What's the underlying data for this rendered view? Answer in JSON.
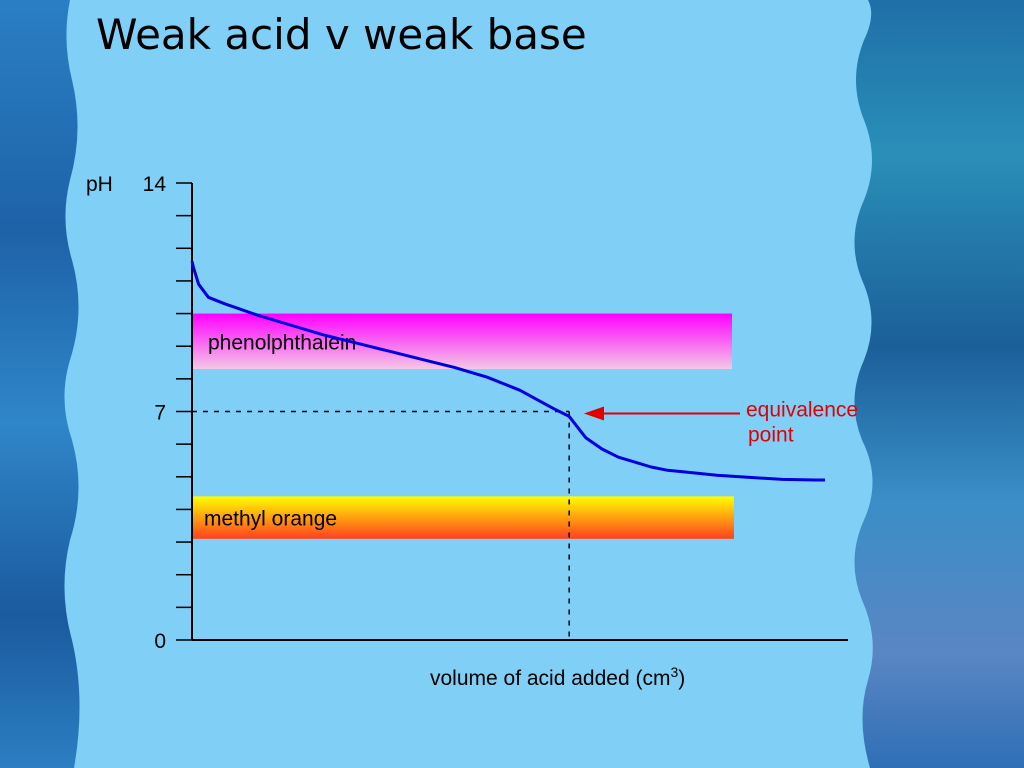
{
  "slide": {
    "title": "Weak acid v weak base",
    "panel_color": "#80cff7"
  },
  "chart_data": {
    "type": "line",
    "title": "",
    "ylabel": "pH",
    "xlabel_main": "volume of acid added (cm",
    "xlabel_sup": "3",
    "xlabel_close": ")",
    "ylim": [
      0,
      14
    ],
    "xlim": [
      0,
      20
    ],
    "y_ticks_labeled": [
      {
        "value": 14,
        "label": "14"
      },
      {
        "value": 7,
        "label": "7"
      },
      {
        "value": 0,
        "label": "0"
      }
    ],
    "y_minor_tick_step": 1,
    "series": [
      {
        "color": "#0000dd",
        "x": [
          0,
          0.05,
          0.2,
          0.5,
          1,
          2,
          3,
          4,
          5,
          6,
          7,
          8,
          9,
          10,
          11,
          11.5,
          12,
          12.5,
          13,
          13.5,
          14,
          14.5,
          15,
          16,
          17,
          18,
          19,
          19.3
        ],
        "y": [
          11.6,
          11.4,
          10.9,
          10.5,
          10.3,
          9.95,
          9.65,
          9.35,
          9.1,
          8.85,
          8.6,
          8.35,
          8.05,
          7.65,
          7.1,
          6.85,
          6.2,
          5.85,
          5.6,
          5.45,
          5.3,
          5.2,
          5.15,
          5.05,
          4.98,
          4.92,
          4.9,
          4.9
        ]
      }
    ],
    "equivalence": {
      "x": 11.5,
      "y": 7
    },
    "indicator_bands": [
      {
        "name": "phenolphthalein",
        "ymin": 8.3,
        "ymax": 10.0,
        "color_top": "#ff00ff",
        "color_bottom": "#f3c8e6"
      },
      {
        "name": "methyl orange",
        "ymin": 3.1,
        "ymax": 4.4,
        "color_top": "#ffff00",
        "color_bottom": "#ff4020"
      }
    ],
    "annotations": [
      {
        "text_line1": "equivalence",
        "text_line2": "point",
        "color": "#e00000"
      }
    ],
    "grid": false,
    "legend": "none"
  }
}
